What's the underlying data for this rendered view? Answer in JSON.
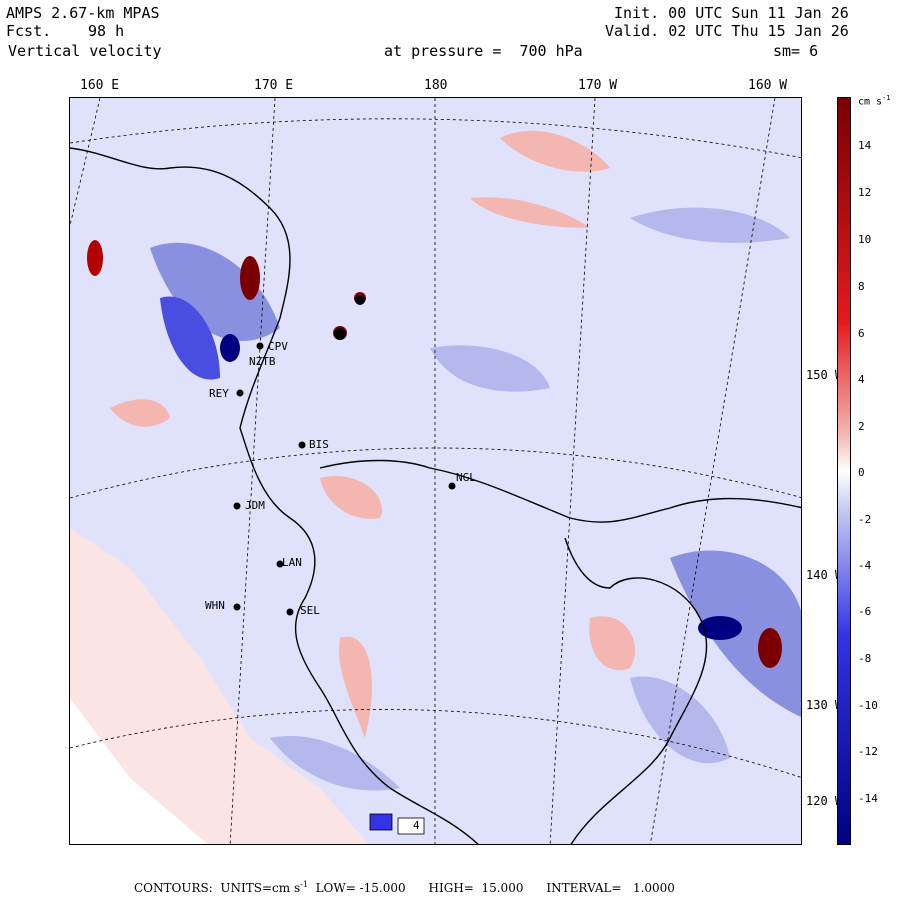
{
  "header": {
    "model": "AMPS 2.67-km MPAS",
    "forecast_label": "Fcst.",
    "forecast_value": "98 h",
    "variable": "Vertical velocity",
    "level_text": "at pressure =  700 hPa",
    "init_text": "Init. 00 UTC Sun 11 Jan 26",
    "valid_text": "Valid. 02 UTC Thu 15 Jan 26",
    "smoothing": "sm= 6"
  },
  "longitude_labels": [
    "160 E",
    "170 E",
    "180",
    "170 W",
    "160 W"
  ],
  "latitude_labels": [
    "150 W",
    "140 W",
    "130 W",
    "120 W"
  ],
  "colorbar": {
    "unit": "cm s",
    "unit_exp": "-1",
    "tick_labels": [
      "14",
      "12",
      "10",
      "8",
      "6",
      "4",
      "2",
      "0",
      "-2",
      "-4",
      "-6",
      "-8",
      "-10",
      "-12",
      "-14"
    ],
    "colors": {
      "strong_up": "#7a0000",
      "up_mid": "#e41a1c",
      "up_light": "#f4b6b0",
      "neutral": "#ffffff",
      "down_light": "#c8ccf0",
      "down_mid": "#3333e6",
      "strong_down": "#000080"
    }
  },
  "stations": [
    {
      "code": "CPV"
    },
    {
      "code": "NZTB"
    },
    {
      "code": "REY"
    },
    {
      "code": "BIS"
    },
    {
      "code": "NGL"
    },
    {
      "code": "JDM"
    },
    {
      "code": "LAN"
    },
    {
      "code": "WHN"
    },
    {
      "code": "SEL"
    },
    {
      "code": "4"
    }
  ],
  "footer": {
    "contours": "CONTOURS:",
    "units_text": "UNITS=cm s",
    "units_exp": "-1",
    "low_text": "LOW= -15.000",
    "high_text": "HIGH=  15.000",
    "interval_text": "INTERVAL=   1.0000"
  }
}
